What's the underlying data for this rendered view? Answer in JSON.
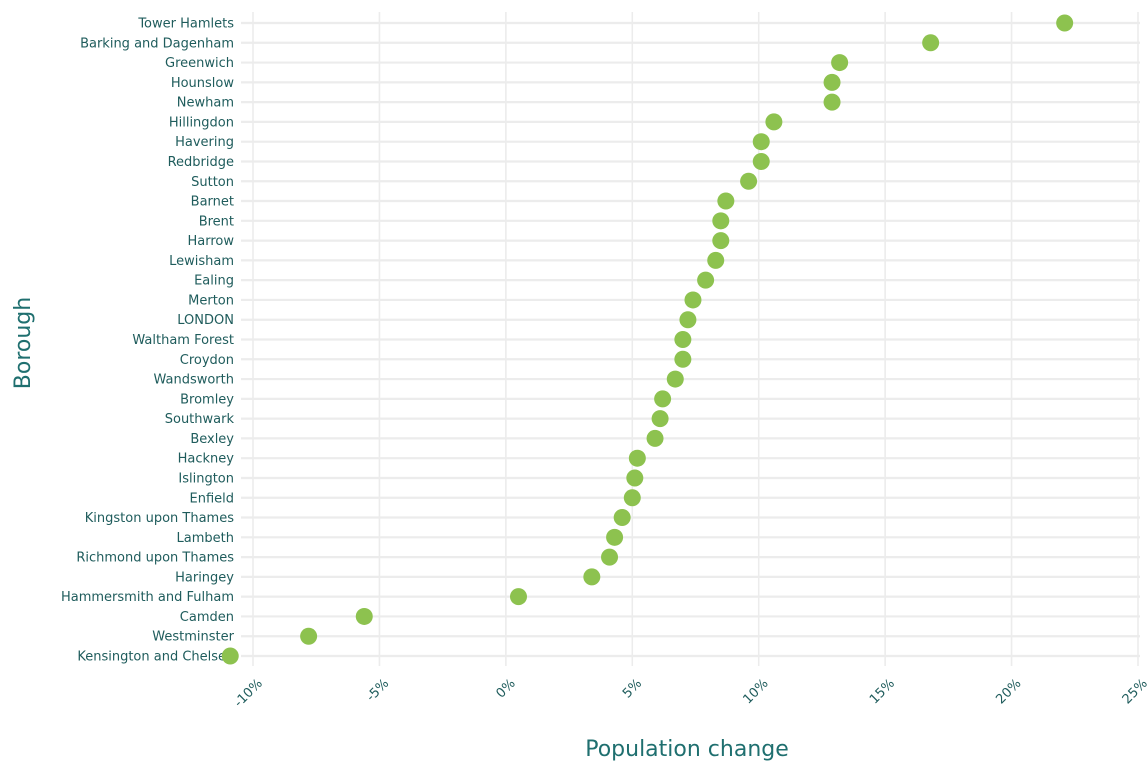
{
  "chart_data": {
    "type": "scatter",
    "xlabel": "Population change",
    "ylabel": "Borough",
    "xlim": [
      -10,
      25
    ],
    "x_ticks": [
      -10,
      -5,
      0,
      5,
      10,
      15,
      20,
      25
    ],
    "x_tick_labels": [
      "-10%",
      "-5%",
      "0%",
      "5%",
      "10%",
      "15%",
      "20%",
      "25%"
    ],
    "grid": true,
    "point_color": "#8dc24f",
    "text_color": "#1f5c5c",
    "categories": [
      "Tower Hamlets",
      "Barking and Dagenham",
      "Greenwich",
      "Hounslow",
      "Newham",
      "Hillingdon",
      "Havering",
      "Redbridge",
      "Sutton",
      "Barnet",
      "Brent",
      "Harrow",
      "Lewisham",
      "Ealing",
      "Merton",
      "LONDON",
      "Waltham Forest",
      "Croydon",
      "Wandsworth",
      "Bromley",
      "Southwark",
      "Bexley",
      "Hackney",
      "Islington",
      "Enfield",
      "Kingston upon Thames",
      "Lambeth",
      "Richmond upon Thames",
      "Haringey",
      "Hammersmith and Fulham",
      "Camden",
      "Westminster",
      "Kensington and Chelsea"
    ],
    "values": [
      22.1,
      16.8,
      13.2,
      12.9,
      12.9,
      10.6,
      10.1,
      10.1,
      9.6,
      8.7,
      8.5,
      8.5,
      8.3,
      7.9,
      7.4,
      7.2,
      7.0,
      7.0,
      6.7,
      6.2,
      6.1,
      5.9,
      5.2,
      5.1,
      5.0,
      4.6,
      4.3,
      4.1,
      3.4,
      0.5,
      -5.6,
      -7.8,
      -10.9
    ]
  }
}
